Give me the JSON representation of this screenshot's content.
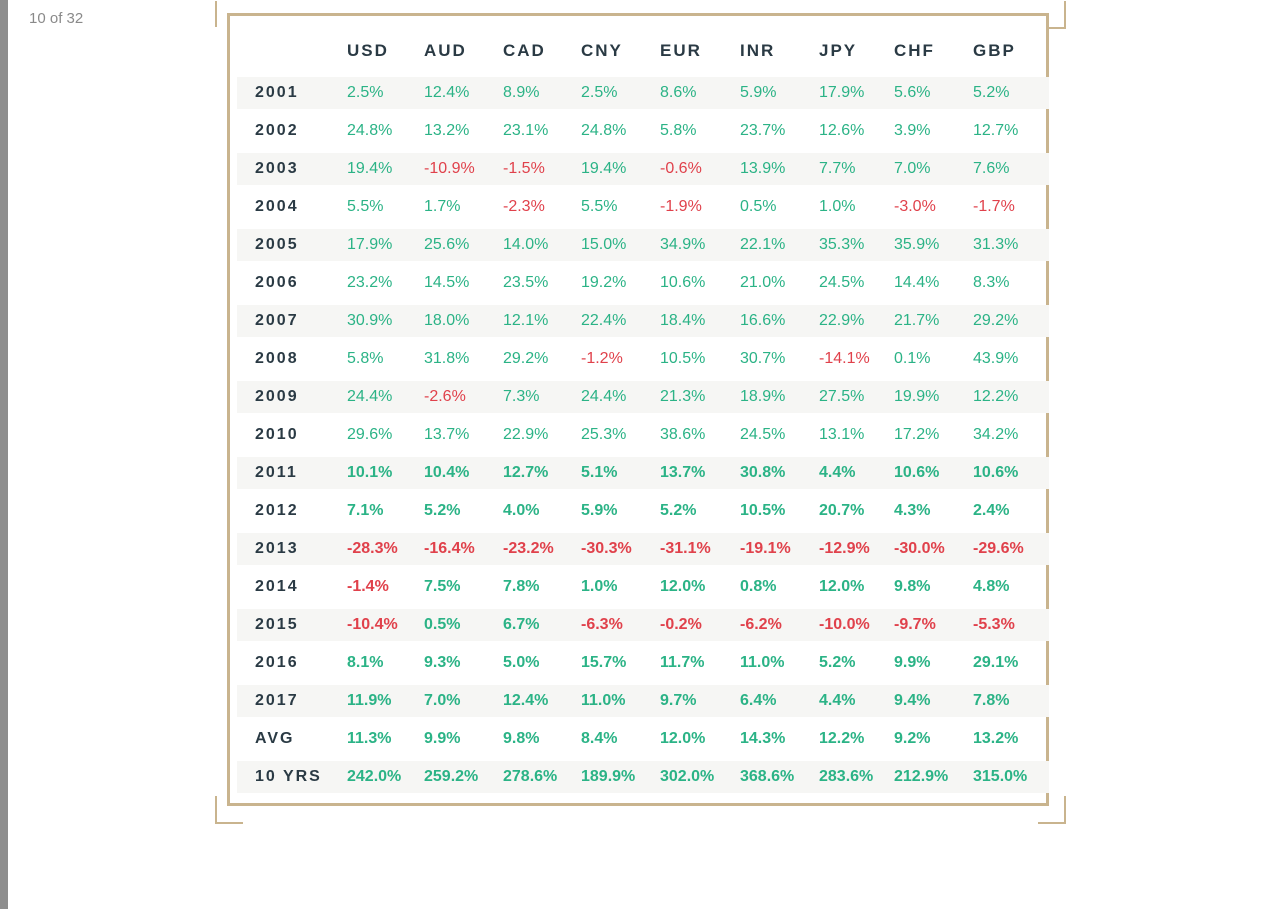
{
  "viewer": {
    "page_counter": "10 of 32"
  },
  "colors": {
    "positive": "#2bb386",
    "negative": "#e0414b",
    "frame": "#c9b48e",
    "heading": "#2a3a44"
  },
  "table": {
    "columns": [
      "USD",
      "AUD",
      "CAD",
      "CNY",
      "EUR",
      "INR",
      "JPY",
      "CHF",
      "GBP"
    ],
    "rows": [
      {
        "label": "2001",
        "values": [
          "2.5%",
          "12.4%",
          "8.9%",
          "2.5%",
          "8.6%",
          "5.9%",
          "17.9%",
          "5.6%",
          "5.2%"
        ]
      },
      {
        "label": "2002",
        "values": [
          "24.8%",
          "13.2%",
          "23.1%",
          "24.8%",
          "5.8%",
          "23.7%",
          "12.6%",
          "3.9%",
          "12.7%"
        ]
      },
      {
        "label": "2003",
        "values": [
          "19.4%",
          "-10.9%",
          "-1.5%",
          "19.4%",
          "-0.6%",
          "13.9%",
          "7.7%",
          "7.0%",
          "7.6%"
        ]
      },
      {
        "label": "2004",
        "values": [
          "5.5%",
          "1.7%",
          "-2.3%",
          "5.5%",
          "-1.9%",
          "0.5%",
          "1.0%",
          "-3.0%",
          "-1.7%"
        ]
      },
      {
        "label": "2005",
        "values": [
          "17.9%",
          "25.6%",
          "14.0%",
          "15.0%",
          "34.9%",
          "22.1%",
          "35.3%",
          "35.9%",
          "31.3%"
        ]
      },
      {
        "label": "2006",
        "values": [
          "23.2%",
          "14.5%",
          "23.5%",
          "19.2%",
          "10.6%",
          "21.0%",
          "24.5%",
          "14.4%",
          "8.3%"
        ]
      },
      {
        "label": "2007",
        "values": [
          "30.9%",
          "18.0%",
          "12.1%",
          "22.4%",
          "18.4%",
          "16.6%",
          "22.9%",
          "21.7%",
          "29.2%"
        ]
      },
      {
        "label": "2008",
        "values": [
          "5.8%",
          "31.8%",
          "29.2%",
          "-1.2%",
          "10.5%",
          "30.7%",
          "-14.1%",
          "0.1%",
          "43.9%"
        ]
      },
      {
        "label": "2009",
        "values": [
          "24.4%",
          "-2.6%",
          "7.3%",
          "24.4%",
          "21.3%",
          "18.9%",
          "27.5%",
          "19.9%",
          "12.2%"
        ]
      },
      {
        "label": "2010",
        "values": [
          "29.6%",
          "13.7%",
          "22.9%",
          "25.3%",
          "38.6%",
          "24.5%",
          "13.1%",
          "17.2%",
          "34.2%"
        ]
      },
      {
        "label": "2011",
        "values": [
          "10.1%",
          "10.4%",
          "12.7%",
          "5.1%",
          "13.7%",
          "30.8%",
          "4.4%",
          "10.6%",
          "10.6%"
        ]
      },
      {
        "label": "2012",
        "values": [
          "7.1%",
          "5.2%",
          "4.0%",
          "5.9%",
          "5.2%",
          "10.5%",
          "20.7%",
          "4.3%",
          "2.4%"
        ]
      },
      {
        "label": "2013",
        "values": [
          "-28.3%",
          "-16.4%",
          "-23.2%",
          "-30.3%",
          "-31.1%",
          "-19.1%",
          "-12.9%",
          "-30.0%",
          "-29.6%"
        ]
      },
      {
        "label": "2014",
        "values": [
          "-1.4%",
          "7.5%",
          "7.8%",
          "1.0%",
          "12.0%",
          "0.8%",
          "12.0%",
          "9.8%",
          "4.8%"
        ]
      },
      {
        "label": "2015",
        "values": [
          "-10.4%",
          "0.5%",
          "6.7%",
          "-6.3%",
          "-0.2%",
          "-6.2%",
          "-10.0%",
          "-9.7%",
          "-5.3%"
        ]
      },
      {
        "label": "2016",
        "values": [
          "8.1%",
          "9.3%",
          "5.0%",
          "15.7%",
          "11.7%",
          "11.0%",
          "5.2%",
          "9.9%",
          "29.1%"
        ]
      },
      {
        "label": "2017",
        "values": [
          "11.9%",
          "7.0%",
          "12.4%",
          "11.0%",
          "9.7%",
          "6.4%",
          "4.4%",
          "9.4%",
          "7.8%"
        ]
      },
      {
        "label": "AVG",
        "values": [
          "11.3%",
          "9.9%",
          "9.8%",
          "8.4%",
          "12.0%",
          "14.3%",
          "12.2%",
          "9.2%",
          "13.2%"
        ]
      },
      {
        "label": "10 YRS",
        "values": [
          "242.0%",
          "259.2%",
          "278.6%",
          "189.9%",
          "302.0%",
          "368.6%",
          "283.6%",
          "212.9%",
          "315.0%"
        ]
      }
    ]
  }
}
